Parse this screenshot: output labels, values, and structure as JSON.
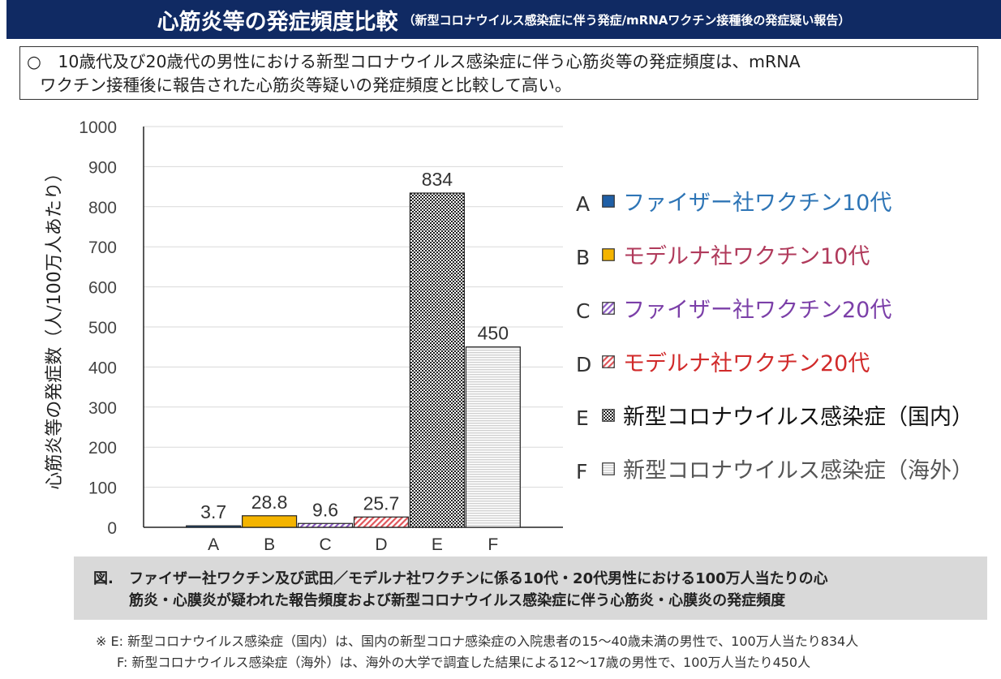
{
  "header": {
    "title": "心筋炎等の発症頻度比較",
    "subtitle": "（新型コロナウイルス感染症に伴う発症/mRNAワクチン接種後の発症疑い報告）"
  },
  "summary": {
    "line1": "○　10歳代及び20歳代の男性における新型コロナウイルス感染症に伴う心筋炎等の発症頻度は、mRNA",
    "line2": "ワクチン接種後に報告された心筋炎等疑いの発症頻度と比較して高い。"
  },
  "chart_data": {
    "type": "bar",
    "categories": [
      "A",
      "B",
      "C",
      "D",
      "E",
      "F"
    ],
    "values": [
      3.7,
      28.8,
      9.6,
      25.7,
      834,
      450
    ],
    "value_labels": [
      "3.7",
      "28.8",
      "9.6",
      "25.7",
      "834",
      "450"
    ],
    "ylabel": "心筋炎等の発症数（人/100万人あたり）",
    "ylim": [
      0,
      1000
    ],
    "yticks": [
      0,
      100,
      200,
      300,
      400,
      500,
      600,
      700,
      800,
      900,
      1000
    ],
    "grid": true,
    "legend_position": "right",
    "legend": [
      {
        "key": "A",
        "label": "ファイザー社ワクチン10代",
        "text_color": "#2e75b6",
        "fill": "#1f5fa6",
        "pattern": "solid"
      },
      {
        "key": "B",
        "label": "モデルナ社ワクチン10代",
        "text_color": "#b03a5b",
        "fill": "#f4b400",
        "pattern": "solid"
      },
      {
        "key": "C",
        "label": "ファイザー社ワクチン20代",
        "text_color": "#7b3fa8",
        "fill": "#8e5cc4",
        "pattern": "diagonal"
      },
      {
        "key": "D",
        "label": "モデルナ社ワクチン20代",
        "text_color": "#d12a2a",
        "fill": "#e0555a",
        "pattern": "diagonal"
      },
      {
        "key": "E",
        "label": "新型コロナウイルス感染症（国内）",
        "text_color": "#111111",
        "fill": "#222222",
        "pattern": "checker"
      },
      {
        "key": "F",
        "label": "新型コロナウイルス感染症（海外）",
        "text_color": "#555555",
        "fill": "#d0d0d0",
        "pattern": "hlines"
      }
    ]
  },
  "caption": {
    "label": "図.",
    "line1": "ファイザー社ワクチン及び武田／モデルナ社ワクチンに係る10代・20代男性における100万人当たりの心",
    "line2": "筋炎・心膜炎が疑われた報告頻度および新型コロナウイルス感染症に伴う心筋炎・心膜炎の発症頻度"
  },
  "footnotes": {
    "line1": "※ E: 新型コロナウイルス感染症（国内）は、国内の新型コロナ感染症の入院患者の15～40歳未満の男性で、100万人当たり834人",
    "line2": "F: 新型コロナウイルス感染症（海外）は、海外の大学で調査した結果による12～17歳の男性で、100万人当たり450人"
  }
}
